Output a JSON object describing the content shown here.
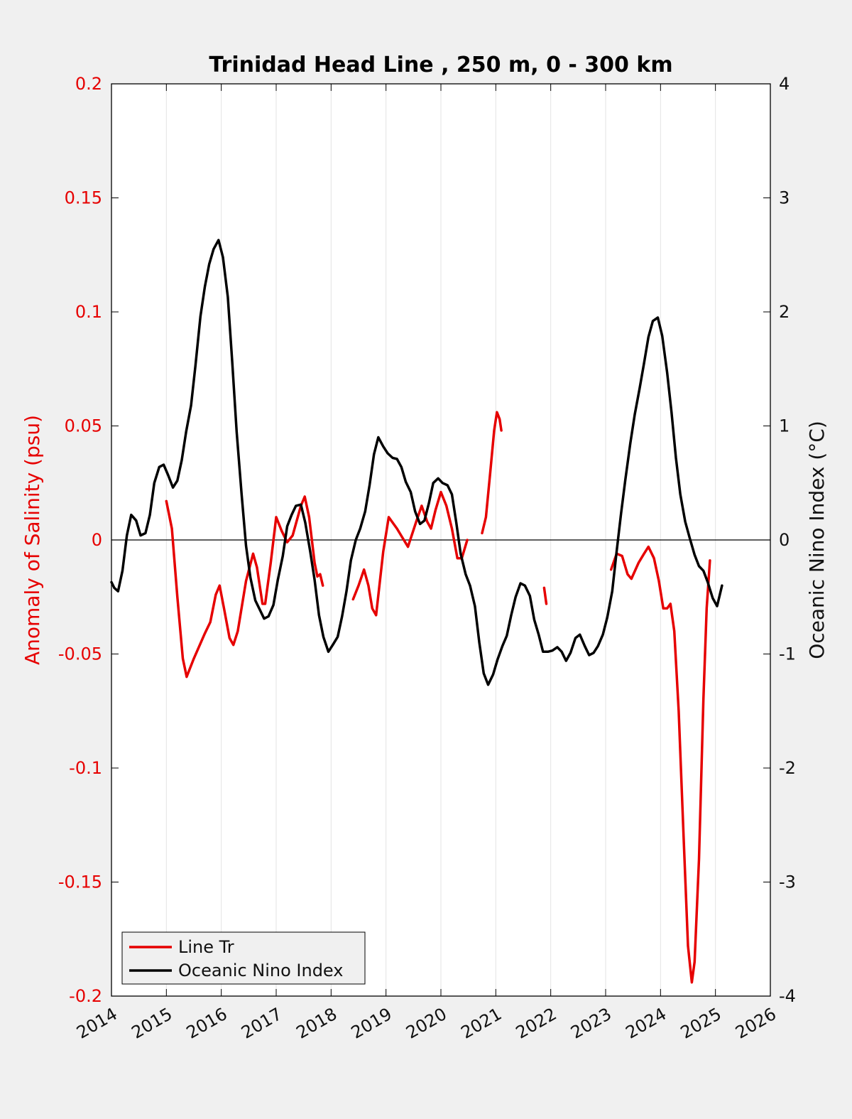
{
  "chart_data": {
    "type": "line",
    "title": "Trinidad Head Line , 250 m, 0 - 300 km",
    "ylabel_left": "Anomaly of Salinity (psu)",
    "ylabel_right": "Oceanic Nino Index (°C)",
    "xlim": [
      2014,
      2026
    ],
    "ylim_left": [
      -0.2,
      0.2
    ],
    "ylim_right": [
      -4,
      4
    ],
    "x_ticks": [
      "2014",
      "2015",
      "2016",
      "2017",
      "2018",
      "2019",
      "2020",
      "2021",
      "2022",
      "2023",
      "2024",
      "2025",
      "2026"
    ],
    "y_left_ticks": [
      "0.2",
      "0.15",
      "0.1",
      "0.05",
      "0",
      "-0.05",
      "-0.1",
      "-0.15",
      "-0.2"
    ],
    "y_right_ticks": [
      "4",
      "3",
      "2",
      "1",
      "0",
      "-1",
      "-2",
      "-3",
      "-4"
    ],
    "grid": "vertical",
    "legend_position": "bottom-left",
    "colors": {
      "salinity": "#e60000",
      "oni": "#000000",
      "background": "#f0f0f0",
      "axes": "#ffffff"
    },
    "series": [
      {
        "name": "Line Tr",
        "axis": "left",
        "color": "#e60000",
        "segments": [
          [
            [
              2015.0,
              0.017
            ],
            [
              2015.1,
              0.005
            ],
            [
              2015.2,
              -0.025
            ],
            [
              2015.3,
              -0.052
            ],
            [
              2015.37,
              -0.06
            ],
            [
              2015.5,
              -0.052
            ],
            [
              2015.7,
              -0.041
            ],
            [
              2015.8,
              -0.036
            ],
            [
              2015.9,
              -0.024
            ],
            [
              2015.97,
              -0.02
            ],
            [
              2016.05,
              -0.03
            ],
            [
              2016.15,
              -0.043
            ],
            [
              2016.22,
              -0.046
            ],
            [
              2016.3,
              -0.04
            ],
            [
              2016.45,
              -0.018
            ],
            [
              2016.58,
              -0.006
            ],
            [
              2016.65,
              -0.012
            ],
            [
              2016.75,
              -0.028
            ],
            [
              2016.8,
              -0.028
            ],
            [
              2016.9,
              -0.01
            ],
            [
              2017.0,
              0.01
            ],
            [
              2017.1,
              0.004
            ],
            [
              2017.2,
              -0.001
            ],
            [
              2017.3,
              0.002
            ],
            [
              2017.45,
              0.015
            ],
            [
              2017.52,
              0.019
            ],
            [
              2017.6,
              0.01
            ],
            [
              2017.7,
              -0.01
            ],
            [
              2017.75,
              -0.016
            ],
            [
              2017.8,
              -0.015
            ],
            [
              2017.85,
              -0.02
            ]
          ],
          [
            [
              2018.4,
              -0.026
            ],
            [
              2018.5,
              -0.02
            ],
            [
              2018.6,
              -0.013
            ],
            [
              2018.68,
              -0.02
            ],
            [
              2018.75,
              -0.03
            ],
            [
              2018.82,
              -0.033
            ],
            [
              2018.95,
              -0.005
            ],
            [
              2019.05,
              0.01
            ],
            [
              2019.2,
              0.005
            ],
            [
              2019.4,
              -0.003
            ],
            [
              2019.55,
              0.008
            ],
            [
              2019.65,
              0.015
            ],
            [
              2019.75,
              0.008
            ],
            [
              2019.82,
              0.005
            ],
            [
              2019.9,
              0.013
            ],
            [
              2020.0,
              0.021
            ],
            [
              2020.1,
              0.015
            ],
            [
              2020.2,
              0.005
            ],
            [
              2020.3,
              -0.008
            ],
            [
              2020.38,
              -0.008
            ],
            [
              2020.48,
              0.0
            ]
          ],
          [
            [
              2020.75,
              0.003
            ],
            [
              2020.82,
              0.01
            ],
            [
              2020.9,
              0.03
            ],
            [
              2020.97,
              0.048
            ],
            [
              2021.02,
              0.056
            ],
            [
              2021.07,
              0.053
            ],
            [
              2021.1,
              0.048
            ]
          ],
          [
            [
              2021.88,
              -0.021
            ],
            [
              2021.92,
              -0.028
            ]
          ],
          [
            [
              2023.1,
              -0.013
            ],
            [
              2023.2,
              -0.006
            ],
            [
              2023.3,
              -0.007
            ],
            [
              2023.4,
              -0.015
            ],
            [
              2023.47,
              -0.017
            ],
            [
              2023.6,
              -0.01
            ],
            [
              2023.7,
              -0.006
            ],
            [
              2023.78,
              -0.003
            ],
            [
              2023.88,
              -0.008
            ],
            [
              2023.97,
              -0.018
            ],
            [
              2024.05,
              -0.03
            ],
            [
              2024.12,
              -0.03
            ],
            [
              2024.18,
              -0.028
            ],
            [
              2024.25,
              -0.04
            ],
            [
              2024.33,
              -0.075
            ],
            [
              2024.42,
              -0.13
            ],
            [
              2024.5,
              -0.178
            ],
            [
              2024.57,
              -0.194
            ],
            [
              2024.62,
              -0.185
            ],
            [
              2024.7,
              -0.14
            ],
            [
              2024.78,
              -0.07
            ],
            [
              2024.84,
              -0.03
            ],
            [
              2024.9,
              -0.009
            ]
          ]
        ]
      },
      {
        "name": "Oceanic Nino Index",
        "axis": "right",
        "color": "#000000",
        "segments": [
          [
            [
              2014.0,
              -0.37
            ],
            [
              2014.05,
              -0.42
            ],
            [
              2014.12,
              -0.45
            ],
            [
              2014.2,
              -0.27
            ],
            [
              2014.28,
              0.04
            ],
            [
              2014.36,
              0.22
            ],
            [
              2014.45,
              0.17
            ],
            [
              2014.53,
              0.04
            ],
            [
              2014.62,
              0.06
            ],
            [
              2014.7,
              0.22
            ],
            [
              2014.78,
              0.5
            ],
            [
              2014.87,
              0.64
            ],
            [
              2014.95,
              0.66
            ],
            [
              2015.03,
              0.57
            ],
            [
              2015.12,
              0.46
            ],
            [
              2015.2,
              0.52
            ],
            [
              2015.28,
              0.7
            ],
            [
              2015.36,
              0.95
            ],
            [
              2015.45,
              1.18
            ],
            [
              2015.53,
              1.53
            ],
            [
              2015.62,
              1.96
            ],
            [
              2015.7,
              2.22
            ],
            [
              2015.78,
              2.42
            ],
            [
              2015.86,
              2.55
            ],
            [
              2015.95,
              2.63
            ],
            [
              2016.03,
              2.48
            ],
            [
              2016.12,
              2.13
            ],
            [
              2016.2,
              1.56
            ],
            [
              2016.28,
              0.95
            ],
            [
              2016.37,
              0.4
            ],
            [
              2016.45,
              -0.05
            ],
            [
              2016.53,
              -0.33
            ],
            [
              2016.62,
              -0.53
            ],
            [
              2016.7,
              -0.61
            ],
            [
              2016.78,
              -0.69
            ],
            [
              2016.86,
              -0.67
            ],
            [
              2016.95,
              -0.57
            ],
            [
              2017.03,
              -0.35
            ],
            [
              2017.12,
              -0.14
            ],
            [
              2017.2,
              0.12
            ],
            [
              2017.28,
              0.22
            ],
            [
              2017.36,
              0.3
            ],
            [
              2017.45,
              0.31
            ],
            [
              2017.53,
              0.15
            ],
            [
              2017.62,
              -0.1
            ],
            [
              2017.7,
              -0.35
            ],
            [
              2017.78,
              -0.66
            ],
            [
              2017.86,
              -0.85
            ],
            [
              2017.95,
              -0.98
            ],
            [
              2018.03,
              -0.92
            ],
            [
              2018.12,
              -0.85
            ],
            [
              2018.2,
              -0.67
            ],
            [
              2018.28,
              -0.45
            ],
            [
              2018.36,
              -0.18
            ],
            [
              2018.45,
              0.0
            ],
            [
              2018.53,
              0.1
            ],
            [
              2018.62,
              0.25
            ],
            [
              2018.7,
              0.48
            ],
            [
              2018.78,
              0.75
            ],
            [
              2018.86,
              0.9
            ],
            [
              2018.95,
              0.82
            ],
            [
              2019.03,
              0.76
            ],
            [
              2019.12,
              0.72
            ],
            [
              2019.2,
              0.71
            ],
            [
              2019.28,
              0.64
            ],
            [
              2019.36,
              0.51
            ],
            [
              2019.45,
              0.42
            ],
            [
              2019.53,
              0.25
            ],
            [
              2019.62,
              0.14
            ],
            [
              2019.7,
              0.17
            ],
            [
              2019.78,
              0.32
            ],
            [
              2019.86,
              0.5
            ],
            [
              2019.95,
              0.54
            ],
            [
              2020.03,
              0.5
            ],
            [
              2020.12,
              0.48
            ],
            [
              2020.2,
              0.4
            ],
            [
              2020.28,
              0.15
            ],
            [
              2020.36,
              -0.12
            ],
            [
              2020.45,
              -0.3
            ],
            [
              2020.53,
              -0.4
            ],
            [
              2020.62,
              -0.58
            ],
            [
              2020.7,
              -0.9
            ],
            [
              2020.78,
              -1.17
            ],
            [
              2020.86,
              -1.27
            ],
            [
              2020.95,
              -1.18
            ],
            [
              2021.03,
              -1.05
            ],
            [
              2021.12,
              -0.93
            ],
            [
              2021.2,
              -0.84
            ],
            [
              2021.28,
              -0.66
            ],
            [
              2021.36,
              -0.5
            ],
            [
              2021.45,
              -0.38
            ],
            [
              2021.53,
              -0.4
            ],
            [
              2021.62,
              -0.49
            ],
            [
              2021.7,
              -0.7
            ],
            [
              2021.78,
              -0.83
            ],
            [
              2021.86,
              -0.98
            ],
            [
              2021.95,
              -0.98
            ],
            [
              2022.03,
              -0.97
            ],
            [
              2022.12,
              -0.94
            ],
            [
              2022.2,
              -0.98
            ],
            [
              2022.28,
              -1.06
            ],
            [
              2022.36,
              -0.99
            ],
            [
              2022.45,
              -0.86
            ],
            [
              2022.53,
              -0.83
            ],
            [
              2022.62,
              -0.93
            ],
            [
              2022.7,
              -1.01
            ],
            [
              2022.78,
              -0.99
            ],
            [
              2022.86,
              -0.93
            ],
            [
              2022.95,
              -0.83
            ],
            [
              2023.03,
              -0.68
            ],
            [
              2023.12,
              -0.45
            ],
            [
              2023.2,
              -0.1
            ],
            [
              2023.28,
              0.23
            ],
            [
              2023.36,
              0.53
            ],
            [
              2023.45,
              0.85
            ],
            [
              2023.53,
              1.1
            ],
            [
              2023.62,
              1.33
            ],
            [
              2023.7,
              1.55
            ],
            [
              2023.78,
              1.78
            ],
            [
              2023.86,
              1.92
            ],
            [
              2023.95,
              1.95
            ],
            [
              2024.03,
              1.79
            ],
            [
              2024.12,
              1.47
            ],
            [
              2024.2,
              1.12
            ],
            [
              2024.28,
              0.72
            ],
            [
              2024.36,
              0.4
            ],
            [
              2024.45,
              0.16
            ],
            [
              2024.53,
              0.02
            ],
            [
              2024.62,
              -0.13
            ],
            [
              2024.7,
              -0.23
            ],
            [
              2024.78,
              -0.27
            ],
            [
              2024.86,
              -0.37
            ],
            [
              2024.95,
              -0.51
            ],
            [
              2025.03,
              -0.58
            ],
            [
              2025.12,
              -0.4
            ]
          ]
        ]
      }
    ]
  }
}
